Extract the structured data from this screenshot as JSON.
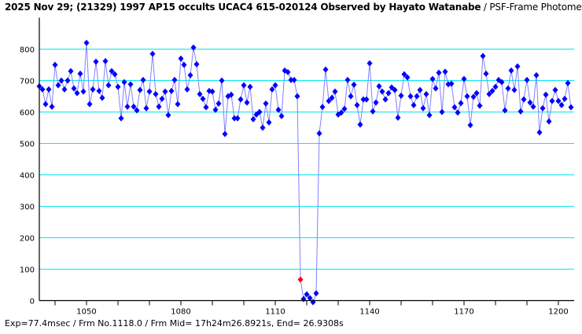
{
  "title": {
    "main": "2025 Nov 29; (21329) 1997 AP15 occults UCAC4 615-020124 Observed by Hayato Watanabe",
    "sub": " / PSF-Frame Photometry /"
  },
  "footer": "Exp=77.4msec / Frm No.1118.0 / Frm Mid= 17h24m26.8921s,  End= 26.9308s",
  "colors": {
    "grid": "#00e8f0",
    "line": "#8080ff",
    "marker": "#0000ff",
    "highlight": "#ff0000",
    "axis": "#000000"
  },
  "chart_data": {
    "type": "line",
    "title": "2025 Nov 29; (21329) 1997 AP15 occults UCAC4 615-020124 Observed by Hayato Watanabe / PSF-Frame Photometry /",
    "xlabel": "",
    "ylabel": "",
    "xlim": [
      1035,
      1205
    ],
    "ylim": [
      0,
      900
    ],
    "grid": true,
    "x_ticks": [
      1040,
      1050,
      1060,
      1070,
      1080,
      1090,
      1100,
      1110,
      1120,
      1130,
      1140,
      1150,
      1160,
      1170,
      1180,
      1190,
      1200
    ],
    "x_tick_labels": [
      "1050",
      "1080",
      "1110",
      "1140",
      "1170",
      "1200"
    ],
    "y_tick_labels": [
      "0",
      "100",
      "200",
      "300",
      "400",
      "500",
      "600",
      "700",
      "800"
    ],
    "highlight_frame": 1118,
    "x_start": 1035,
    "values": [
      682,
      672,
      625,
      672,
      617,
      750,
      685,
      700,
      672,
      700,
      730,
      675,
      660,
      722,
      665,
      820,
      625,
      672,
      760,
      667,
      645,
      762,
      685,
      730,
      720,
      680,
      580,
      695,
      617,
      688,
      617,
      605,
      670,
      702,
      612,
      665,
      785,
      657,
      617,
      642,
      665,
      590,
      667,
      702,
      625,
      770,
      750,
      672,
      717,
      805,
      752,
      657,
      642,
      615,
      667,
      665,
      607,
      627,
      700,
      530,
      650,
      655,
      580,
      580,
      640,
      685,
      630,
      680,
      577,
      592,
      600,
      550,
      627,
      567,
      672,
      685,
      607,
      587,
      732,
      727,
      702,
      702,
      650,
      67,
      5,
      20,
      8,
      -5,
      23,
      532,
      616,
      735,
      635,
      645,
      665,
      592,
      598,
      610,
      702,
      650,
      687,
      622,
      560,
      640,
      640,
      755,
      602,
      630,
      682,
      665,
      640,
      660,
      678,
      670,
      582,
      652,
      720,
      710,
      650,
      622,
      650,
      670,
      612,
      657,
      590,
      705,
      675,
      725,
      600,
      728,
      688,
      690,
      615,
      598,
      628,
      705,
      650,
      558,
      648,
      660,
      620,
      778,
      722,
      657,
      667,
      680,
      702,
      695,
      605,
      675,
      732,
      670,
      745,
      602,
      640,
      702,
      630,
      617,
      717,
      535,
      612,
      655,
      570,
      635,
      670,
      635,
      622,
      642,
      692,
      615
    ]
  }
}
